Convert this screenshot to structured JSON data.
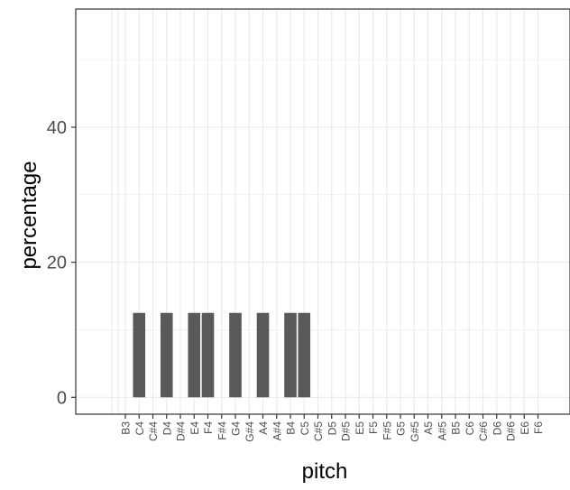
{
  "chart_data": {
    "type": "bar",
    "xlabel": "pitch",
    "ylabel": "percentage",
    "ylim": [
      -2.5,
      57.5
    ],
    "yticks": [
      0,
      20,
      40
    ],
    "grid": true,
    "categories": [
      "B3",
      "C4",
      "C#4",
      "D4",
      "D#4",
      "E4",
      "F4",
      "F#4",
      "G4",
      "G#4",
      "A4",
      "A#4",
      "B4",
      "C5",
      "C#5",
      "D5",
      "D#5",
      "E5",
      "F5",
      "F#5",
      "G5",
      "G#5",
      "A5",
      "A#5",
      "B5",
      "C6",
      "C#6",
      "D6",
      "D#6",
      "E6",
      "F6"
    ],
    "values": [
      0,
      12.5,
      0,
      12.5,
      0,
      12.5,
      12.5,
      0,
      12.5,
      0,
      12.5,
      0,
      12.5,
      12.5,
      0,
      0,
      0,
      0,
      0,
      0,
      0,
      0,
      0,
      0,
      0,
      0,
      0,
      0,
      0,
      0,
      0
    ],
    "bar_color": "#595959",
    "grid_color": "#ebebeb",
    "axis_color": "#333333"
  }
}
